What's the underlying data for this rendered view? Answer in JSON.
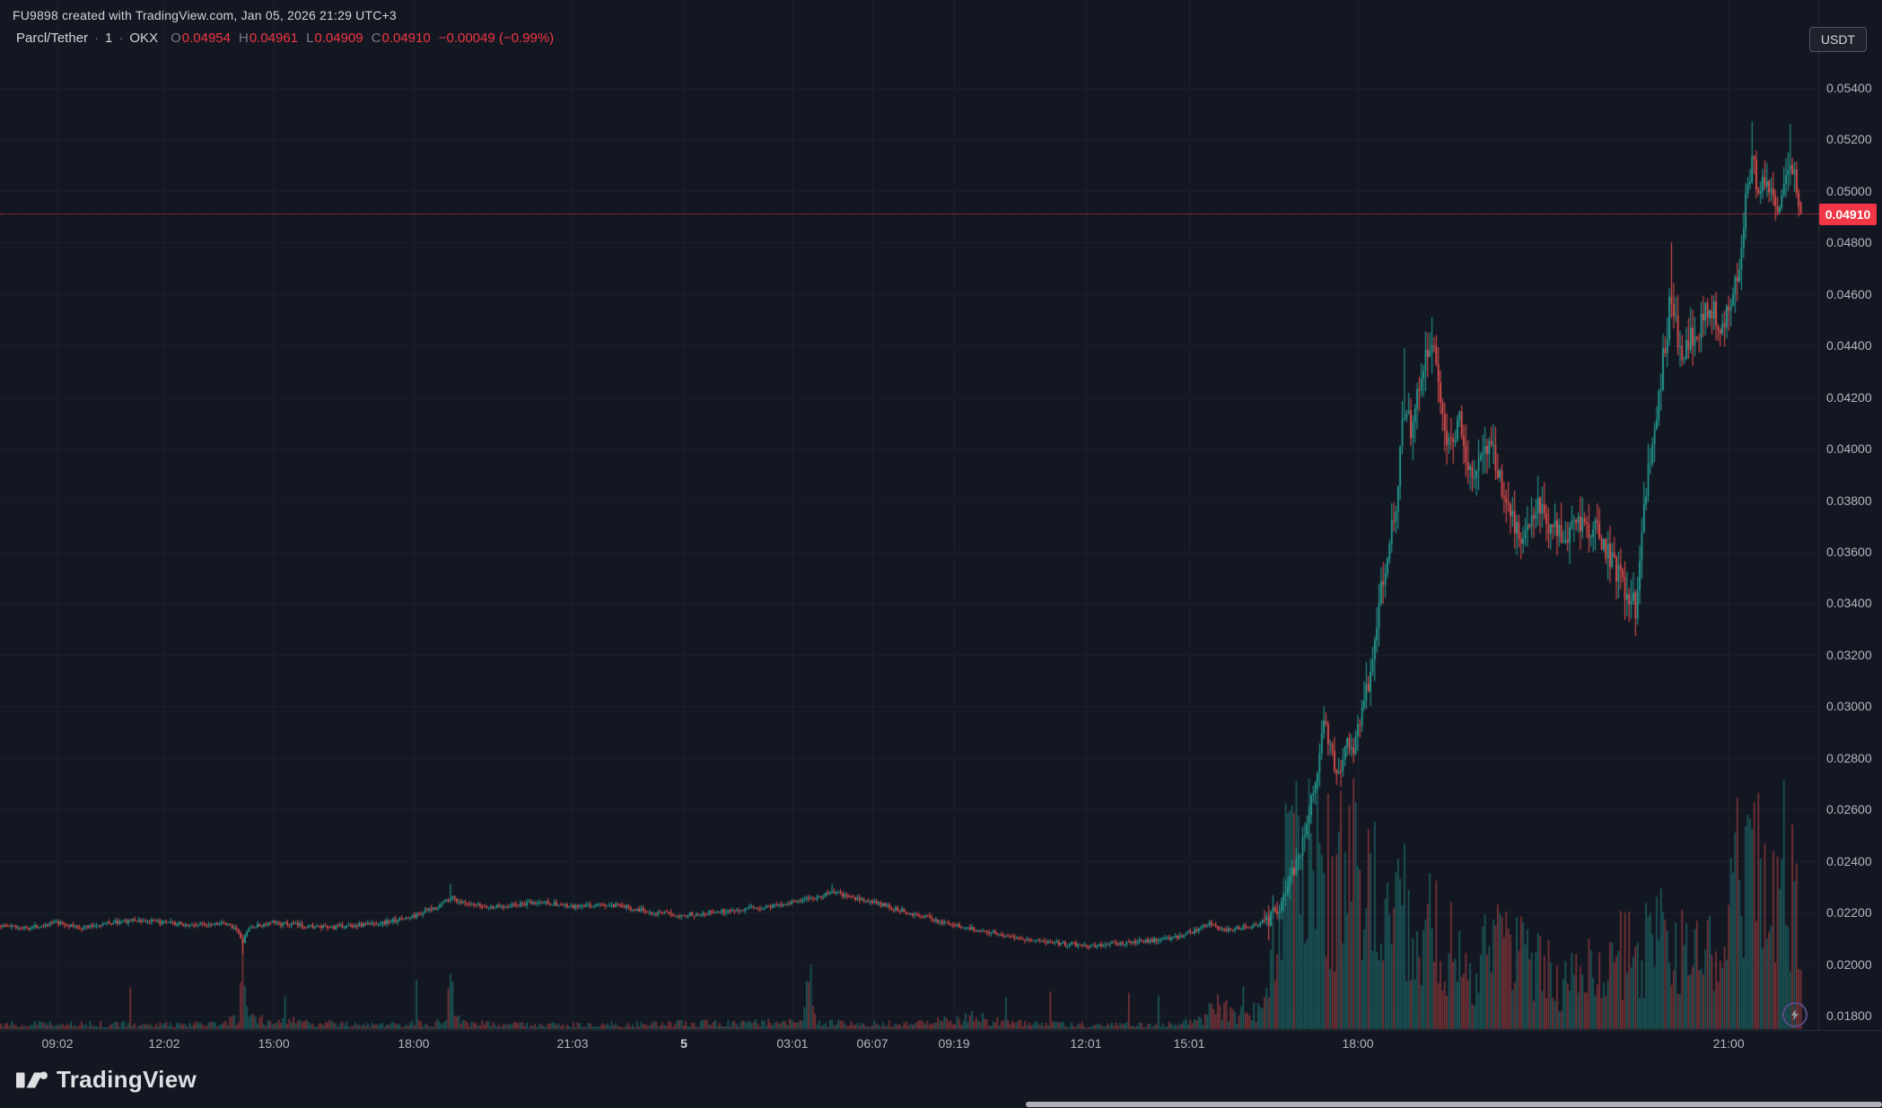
{
  "header": {
    "attribution": "FU9898 created with TradingView.com, Jan 05, 2026 21:29 UTC+3",
    "symbol": "Parcl/Tether",
    "separator": "·",
    "interval": "1",
    "exchange": "OKX",
    "currency": "USDT"
  },
  "legend": {
    "ohlc": [
      {
        "label": "O",
        "value": "0.04954"
      },
      {
        "label": "H",
        "value": "0.04961"
      },
      {
        "label": "L",
        "value": "0.04909"
      },
      {
        "label": "C",
        "value": "0.04910"
      }
    ],
    "change": "−0.00049 (−0.99%)"
  },
  "footer": {
    "logo_text": "TradingView"
  },
  "chart_data": {
    "type": "candlestick",
    "title": "Parcl/Tether · 1 · OKX",
    "interval": "1 minute",
    "quote_currency": "USDT",
    "last": {
      "open": 0.04954,
      "high": 0.04961,
      "low": 0.04909,
      "close": 0.0491,
      "change": -0.00049,
      "change_pct": -0.99
    },
    "last_price": 0.0491,
    "last_price_label": "0.04910",
    "y_axis": {
      "min": 0.018,
      "max": 0.054,
      "ticks": [
        "0.05400",
        "0.05200",
        "0.05000",
        "0.04800",
        "0.04600",
        "0.04400",
        "0.04200",
        "0.04000",
        "0.03800",
        "0.03600",
        "0.03400",
        "0.03200",
        "0.03000",
        "0.02800",
        "0.02600",
        "0.02400",
        "0.02200",
        "0.02000",
        "0.01800"
      ]
    },
    "x_axis": {
      "ticks": [
        {
          "label": "09:02",
          "pos": 0.0316
        },
        {
          "label": "12:02",
          "pos": 0.0903
        },
        {
          "label": "15:00",
          "pos": 0.1506
        },
        {
          "label": "18:00",
          "pos": 0.2275
        },
        {
          "label": "21:03",
          "pos": 0.3149
        },
        {
          "label": "5",
          "pos": 0.3761,
          "emphasis": true
        },
        {
          "label": "03:01",
          "pos": 0.4358
        },
        {
          "label": "06:07",
          "pos": 0.4798
        },
        {
          "label": "09:19",
          "pos": 0.5247
        },
        {
          "label": "12:01",
          "pos": 0.5972
        },
        {
          "label": "15:01",
          "pos": 0.654
        },
        {
          "label": "18:00",
          "pos": 0.7468
        },
        {
          "label": "21:00",
          "pos": 0.9507
        }
      ]
    },
    "data_extent": 0.991,
    "price_path": [
      [
        0.0,
        0.0215
      ],
      [
        0.015,
        0.0214
      ],
      [
        0.03,
        0.0216
      ],
      [
        0.045,
        0.0214
      ],
      [
        0.06,
        0.0216
      ],
      [
        0.075,
        0.0217
      ],
      [
        0.09,
        0.0216
      ],
      [
        0.105,
        0.0215
      ],
      [
        0.12,
        0.0216
      ],
      [
        0.13,
        0.0214
      ],
      [
        0.133,
        0.0208
      ],
      [
        0.137,
        0.0214
      ],
      [
        0.15,
        0.0216
      ],
      [
        0.165,
        0.0215
      ],
      [
        0.18,
        0.0214
      ],
      [
        0.195,
        0.0215
      ],
      [
        0.21,
        0.0216
      ],
      [
        0.225,
        0.0218
      ],
      [
        0.24,
        0.0222
      ],
      [
        0.248,
        0.0226
      ],
      [
        0.256,
        0.0223
      ],
      [
        0.27,
        0.0222
      ],
      [
        0.285,
        0.0223
      ],
      [
        0.3,
        0.0224
      ],
      [
        0.315,
        0.0222
      ],
      [
        0.33,
        0.0223
      ],
      [
        0.345,
        0.0222
      ],
      [
        0.36,
        0.022
      ],
      [
        0.375,
        0.0219
      ],
      [
        0.39,
        0.022
      ],
      [
        0.405,
        0.0221
      ],
      [
        0.42,
        0.0222
      ],
      [
        0.435,
        0.0224
      ],
      [
        0.45,
        0.0226
      ],
      [
        0.458,
        0.0228
      ],
      [
        0.466,
        0.0226
      ],
      [
        0.48,
        0.0224
      ],
      [
        0.495,
        0.0221
      ],
      [
        0.51,
        0.0218
      ],
      [
        0.525,
        0.0215
      ],
      [
        0.54,
        0.0213
      ],
      [
        0.555,
        0.0211
      ],
      [
        0.57,
        0.0209
      ],
      [
        0.585,
        0.0208
      ],
      [
        0.6,
        0.0207
      ],
      [
        0.615,
        0.0208
      ],
      [
        0.63,
        0.0209
      ],
      [
        0.645,
        0.021
      ],
      [
        0.658,
        0.0213
      ],
      [
        0.666,
        0.0216
      ],
      [
        0.672,
        0.0213
      ],
      [
        0.68,
        0.0214
      ],
      [
        0.69,
        0.0215
      ],
      [
        0.698,
        0.0218
      ],
      [
        0.704,
        0.0224
      ],
      [
        0.71,
        0.0233
      ],
      [
        0.716,
        0.0247
      ],
      [
        0.722,
        0.0266
      ],
      [
        0.728,
        0.0293
      ],
      [
        0.732,
        0.0284
      ],
      [
        0.736,
        0.0272
      ],
      [
        0.74,
        0.0288
      ],
      [
        0.744,
        0.028
      ],
      [
        0.748,
        0.0295
      ],
      [
        0.752,
        0.0308
      ],
      [
        0.756,
        0.0328
      ],
      [
        0.76,
        0.035
      ],
      [
        0.764,
        0.036
      ],
      [
        0.768,
        0.0382
      ],
      [
        0.772,
        0.0418
      ],
      [
        0.776,
        0.0408
      ],
      [
        0.78,
        0.0424
      ],
      [
        0.784,
        0.0436
      ],
      [
        0.787,
        0.0443
      ],
      [
        0.79,
        0.0436
      ],
      [
        0.794,
        0.041
      ],
      [
        0.798,
        0.04
      ],
      [
        0.802,
        0.0414
      ],
      [
        0.806,
        0.0398
      ],
      [
        0.811,
        0.039
      ],
      [
        0.816,
        0.0398
      ],
      [
        0.821,
        0.0403
      ],
      [
        0.826,
        0.0383
      ],
      [
        0.831,
        0.0375
      ],
      [
        0.836,
        0.0364
      ],
      [
        0.841,
        0.0369
      ],
      [
        0.846,
        0.0376
      ],
      [
        0.851,
        0.0371
      ],
      [
        0.856,
        0.0366
      ],
      [
        0.861,
        0.0368
      ],
      [
        0.866,
        0.0372
      ],
      [
        0.871,
        0.037
      ],
      [
        0.876,
        0.0368
      ],
      [
        0.881,
        0.0364
      ],
      [
        0.886,
        0.0357
      ],
      [
        0.891,
        0.035
      ],
      [
        0.896,
        0.0343
      ],
      [
        0.9,
        0.0339
      ],
      [
        0.904,
        0.0376
      ],
      [
        0.908,
        0.0398
      ],
      [
        0.912,
        0.0421
      ],
      [
        0.916,
        0.044
      ],
      [
        0.919,
        0.0462
      ],
      [
        0.922,
        0.0447
      ],
      [
        0.925,
        0.0437
      ],
      [
        0.929,
        0.0441
      ],
      [
        0.933,
        0.0444
      ],
      [
        0.937,
        0.045
      ],
      [
        0.941,
        0.0456
      ],
      [
        0.945,
        0.0449
      ],
      [
        0.949,
        0.0453
      ],
      [
        0.953,
        0.0461
      ],
      [
        0.957,
        0.0476
      ],
      [
        0.961,
        0.0502
      ],
      [
        0.964,
        0.0512
      ],
      [
        0.967,
        0.0501
      ],
      [
        0.97,
        0.0506
      ],
      [
        0.973,
        0.0503
      ],
      [
        0.976,
        0.0497
      ],
      [
        0.979,
        0.0494
      ],
      [
        0.982,
        0.0504
      ],
      [
        0.985,
        0.0511
      ],
      [
        0.988,
        0.05
      ],
      [
        0.991,
        0.0491
      ]
    ],
    "wick_events": [
      {
        "f": 0.133,
        "low": 0.0204
      },
      {
        "f": 0.248,
        "high": 0.0231
      },
      {
        "f": 0.458,
        "high": 0.0231
      },
      {
        "f": 0.728,
        "high": 0.03
      },
      {
        "f": 0.772,
        "high": 0.0439
      },
      {
        "f": 0.787,
        "high": 0.0451
      },
      {
        "f": 0.9,
        "low": 0.0336
      },
      {
        "f": 0.919,
        "high": 0.048
      },
      {
        "f": 0.964,
        "high": 0.0527
      },
      {
        "f": 0.985,
        "high": 0.0526
      }
    ],
    "volume_profile": [
      [
        0.0,
        0.025
      ],
      [
        0.12,
        0.025
      ],
      [
        0.131,
        0.05
      ],
      [
        0.133,
        0.42
      ],
      [
        0.136,
        0.05
      ],
      [
        0.2,
        0.02
      ],
      [
        0.243,
        0.04
      ],
      [
        0.248,
        0.2
      ],
      [
        0.253,
        0.03
      ],
      [
        0.3,
        0.02
      ],
      [
        0.35,
        0.025
      ],
      [
        0.4,
        0.03
      ],
      [
        0.44,
        0.04
      ],
      [
        0.445,
        0.26
      ],
      [
        0.45,
        0.03
      ],
      [
        0.5,
        0.025
      ],
      [
        0.53,
        0.06
      ],
      [
        0.56,
        0.03
      ],
      [
        0.6,
        0.02
      ],
      [
        0.64,
        0.025
      ],
      [
        0.66,
        0.05
      ],
      [
        0.67,
        0.12
      ],
      [
        0.68,
        0.06
      ],
      [
        0.695,
        0.12
      ],
      [
        0.703,
        0.5
      ],
      [
        0.71,
        0.95
      ],
      [
        0.718,
        0.8
      ],
      [
        0.725,
        0.9
      ],
      [
        0.733,
        0.7
      ],
      [
        0.74,
        0.8
      ],
      [
        0.75,
        0.75
      ],
      [
        0.76,
        0.65
      ],
      [
        0.77,
        0.8
      ],
      [
        0.78,
        0.55
      ],
      [
        0.79,
        0.5
      ],
      [
        0.8,
        0.42
      ],
      [
        0.815,
        0.35
      ],
      [
        0.83,
        0.45
      ],
      [
        0.845,
        0.3
      ],
      [
        0.86,
        0.25
      ],
      [
        0.875,
        0.3
      ],
      [
        0.89,
        0.35
      ],
      [
        0.9,
        0.5
      ],
      [
        0.91,
        0.45
      ],
      [
        0.92,
        0.5
      ],
      [
        0.93,
        0.35
      ],
      [
        0.94,
        0.35
      ],
      [
        0.95,
        0.55
      ],
      [
        0.958,
        0.8
      ],
      [
        0.965,
        0.9
      ],
      [
        0.972,
        0.6
      ],
      [
        0.978,
        0.7
      ],
      [
        0.985,
        0.85
      ],
      [
        0.991,
        0.55
      ]
    ],
    "colors": {
      "up": "#26a69a",
      "down": "#ef5350",
      "volume_up": "rgba(38,166,154,0.5)",
      "volume_down": "rgba(239,83,80,0.5)",
      "last_price": "#f23645",
      "background": "#131722",
      "grid": "#1e222d",
      "axis_border": "#2a2e39",
      "axis_text": "#b2b5be",
      "legend_negative": "#f23645"
    }
  }
}
